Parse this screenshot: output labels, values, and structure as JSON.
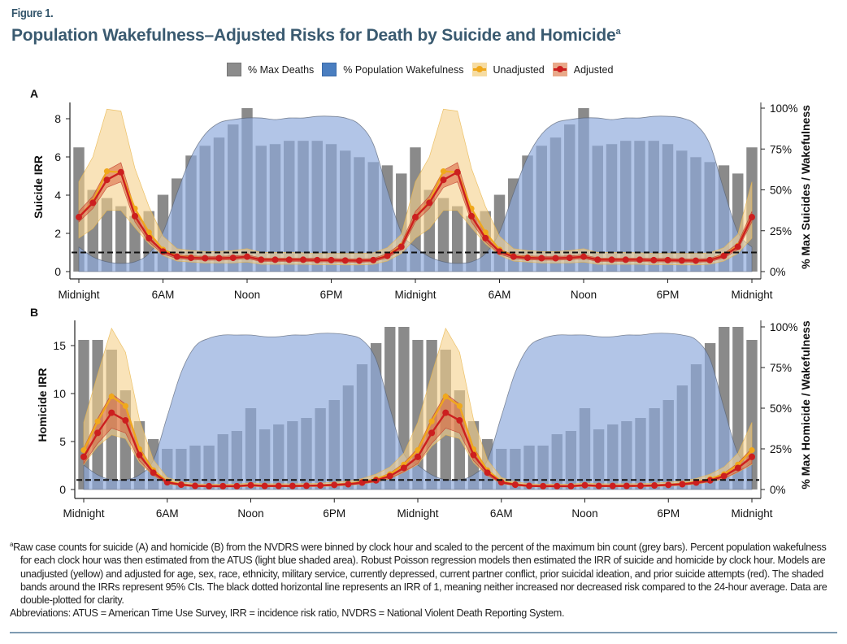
{
  "figure": {
    "label": "Figure 1.",
    "title": "Population Wakefulness–Adjusted Risks for Death by Suicide and Homicide",
    "title_sup": "a"
  },
  "legend": [
    {
      "label": "% Max Deaths",
      "color": "#8c8c8c"
    },
    {
      "label": "% Population Wakefulness",
      "color": "#4a7ec0"
    },
    {
      "label": "Unadjusted",
      "color": "#f0a81c"
    },
    {
      "label": "Adjusted",
      "color": "#cc1f1f"
    }
  ],
  "colors": {
    "bars": "#808080",
    "wake": "#8ea9db",
    "unadjusted_line": "#f0a81c",
    "unadjusted_band": "#f5d08a",
    "adjusted_line": "#cc1f1f",
    "adjusted_band": "#d9603a"
  },
  "chart_data": [
    {
      "panel": "A",
      "type": "bar+area+line",
      "ylabel": "Suicide IRR",
      "y2label": "% Max Suicides / Wakefulness",
      "ylim": [
        0,
        8.8
      ],
      "yticks": [
        "0",
        "2",
        "4",
        "6",
        "8"
      ],
      "ytick_values": [
        0,
        2,
        4,
        6,
        8
      ],
      "y2lim": [
        0,
        100
      ],
      "y2ticks": [
        "0%",
        "25%",
        "50%",
        "75%",
        "100%"
      ],
      "y2tick_values": [
        0,
        25,
        50,
        75,
        100
      ],
      "xticks": [
        "Midnight",
        "6AM",
        "Noon",
        "6PM",
        "Midnight",
        "6AM",
        "Noon",
        "6PM",
        "Midnight"
      ],
      "xtick_hours": [
        0,
        6,
        12,
        18,
        24,
        30,
        36,
        42,
        48
      ],
      "reference_line": 1,
      "hours": [
        0,
        1,
        2,
        3,
        4,
        5,
        6,
        7,
        8,
        9,
        10,
        11,
        12,
        13,
        14,
        15,
        16,
        17,
        18,
        19,
        20,
        21,
        22,
        23
      ],
      "pct_max_deaths": [
        76,
        50,
        45,
        40,
        34,
        37,
        47,
        57,
        71,
        77,
        82,
        90,
        100,
        77,
        78,
        80,
        80,
        80,
        78,
        74,
        70,
        67,
        65,
        60
      ],
      "pct_wakefulness": [
        15,
        9,
        6,
        5,
        6,
        11,
        24,
        48,
        70,
        84,
        91,
        93,
        94,
        94,
        93,
        94,
        94,
        95,
        95,
        94,
        90,
        78,
        50,
        24
      ],
      "unadjusted": {
        "irr": [
          2.85,
          3.65,
          5.25,
          5.2,
          3.3,
          2.05,
          1.15,
          0.8,
          0.75,
          0.7,
          0.7,
          0.72,
          0.78,
          0.63,
          0.63,
          0.63,
          0.62,
          0.6,
          0.6,
          0.58,
          0.58,
          0.6,
          0.85,
          1.35
        ],
        "lower": [
          1.75,
          2.25,
          3.2,
          3.2,
          2.3,
          1.45,
          0.85,
          0.55,
          0.5,
          0.45,
          0.45,
          0.45,
          0.5,
          0.38,
          0.38,
          0.38,
          0.38,
          0.36,
          0.36,
          0.35,
          0.35,
          0.38,
          0.55,
          0.95
        ],
        "upper": [
          4.7,
          6.0,
          8.5,
          8.4,
          5.4,
          3.4,
          1.85,
          1.2,
          1.1,
          1.05,
          1.05,
          1.1,
          1.2,
          1.0,
          1.0,
          1.0,
          0.98,
          0.96,
          0.96,
          0.95,
          0.95,
          0.98,
          1.25,
          1.95
        ]
      },
      "adjusted": {
        "irr": [
          2.85,
          3.6,
          4.8,
          5.2,
          2.9,
          1.75,
          1.05,
          0.78,
          0.72,
          0.7,
          0.7,
          0.72,
          0.78,
          0.62,
          0.62,
          0.62,
          0.62,
          0.6,
          0.6,
          0.58,
          0.57,
          0.6,
          0.82,
          1.3
        ],
        "lower": [
          2.6,
          3.3,
          4.4,
          4.7,
          2.6,
          1.55,
          0.92,
          0.68,
          0.62,
          0.6,
          0.6,
          0.62,
          0.68,
          0.53,
          0.53,
          0.53,
          0.53,
          0.51,
          0.51,
          0.5,
          0.49,
          0.52,
          0.71,
          1.15
        ],
        "upper": [
          3.15,
          3.95,
          5.3,
          5.7,
          3.25,
          1.98,
          1.18,
          0.88,
          0.82,
          0.8,
          0.8,
          0.82,
          0.88,
          0.71,
          0.71,
          0.71,
          0.71,
          0.69,
          0.69,
          0.67,
          0.66,
          0.69,
          0.94,
          1.48
        ]
      }
    },
    {
      "panel": "B",
      "type": "bar+area+line",
      "ylabel": "Homicide IRR",
      "y2label": "% Max Homicide / Wakefulness",
      "ylim": [
        0,
        17.5
      ],
      "yticks": [
        "0",
        "5",
        "10",
        "15"
      ],
      "ytick_values": [
        0,
        5,
        10,
        15
      ],
      "y2lim": [
        0,
        100
      ],
      "y2ticks": [
        "0%",
        "25%",
        "50%",
        "75%",
        "100%"
      ],
      "y2tick_values": [
        0,
        25,
        50,
        75,
        100
      ],
      "xticks": [
        "Midnight",
        "6AM",
        "Noon",
        "6PM",
        "Midnight",
        "6AM",
        "Noon",
        "6PM",
        "Midnight"
      ],
      "xtick_hours": [
        0,
        6,
        12,
        18,
        24,
        30,
        36,
        42,
        48
      ],
      "reference_line": 1,
      "hours": [
        0,
        1,
        2,
        3,
        4,
        5,
        6,
        7,
        8,
        9,
        10,
        11,
        12,
        13,
        14,
        15,
        16,
        17,
        18,
        19,
        20,
        21,
        22,
        23
      ],
      "pct_max_deaths": [
        92,
        92,
        86,
        61,
        42,
        31,
        25,
        25,
        27,
        27,
        34,
        36,
        50,
        37,
        40,
        42,
        44,
        50,
        55,
        64,
        77,
        90,
        100,
        100
      ],
      "pct_wakefulness": [
        15,
        9,
        6,
        6,
        9,
        18,
        45,
        72,
        88,
        93,
        95,
        95,
        95,
        94,
        94,
        95,
        95,
        96,
        96,
        95,
        92,
        80,
        50,
        22
      ],
      "unadjusted": {
        "irr": [
          4.1,
          7.1,
          9.7,
          8.7,
          4.2,
          2.0,
          0.85,
          0.55,
          0.4,
          0.38,
          0.38,
          0.38,
          0.48,
          0.4,
          0.4,
          0.4,
          0.42,
          0.45,
          0.52,
          0.6,
          0.8,
          1.1,
          1.6,
          2.6
        ],
        "lower": [
          2.6,
          4.5,
          5.7,
          5.3,
          2.8,
          1.45,
          0.6,
          0.38,
          0.28,
          0.26,
          0.26,
          0.26,
          0.33,
          0.27,
          0.27,
          0.27,
          0.29,
          0.31,
          0.36,
          0.42,
          0.56,
          0.78,
          1.12,
          1.8
        ],
        "upper": [
          7.0,
          12.0,
          16.8,
          14.3,
          7.3,
          3.1,
          1.25,
          0.8,
          0.6,
          0.55,
          0.55,
          0.55,
          0.7,
          0.6,
          0.6,
          0.6,
          0.62,
          0.66,
          0.76,
          0.88,
          1.15,
          1.6,
          2.35,
          3.8
        ]
      },
      "adjusted": {
        "irr": [
          3.4,
          5.9,
          8.0,
          7.2,
          3.6,
          1.75,
          0.75,
          0.5,
          0.38,
          0.35,
          0.35,
          0.35,
          0.45,
          0.37,
          0.37,
          0.37,
          0.39,
          0.42,
          0.48,
          0.55,
          0.72,
          0.95,
          1.4,
          2.25
        ],
        "lower": [
          2.7,
          4.8,
          6.4,
          5.9,
          3.0,
          1.5,
          0.63,
          0.42,
          0.32,
          0.29,
          0.29,
          0.29,
          0.38,
          0.31,
          0.31,
          0.31,
          0.33,
          0.35,
          0.4,
          0.46,
          0.6,
          0.8,
          1.17,
          1.85
        ],
        "upper": [
          4.3,
          7.4,
          10.0,
          8.9,
          4.4,
          2.08,
          0.9,
          0.6,
          0.46,
          0.42,
          0.42,
          0.42,
          0.54,
          0.44,
          0.44,
          0.44,
          0.47,
          0.5,
          0.58,
          0.66,
          0.87,
          1.14,
          1.7,
          2.75
        ]
      }
    }
  ],
  "footnote": {
    "sup": "a",
    "text": "Raw case counts for suicide (A) and homicide (B) from the NVDRS were binned by clock hour and scaled to the percent of the maximum bin count (grey bars). Percent population wakefulness for each clock hour was then estimated from the ATUS (light blue shaded area). Robust Poisson regression models then estimated the IRR of suicide and homicide by clock hour. Models are unadjusted (yellow) and adjusted for age, sex, race, ethnicity, military service, currently depressed, current partner conflict, prior suicidal ideation, and prior suicide attempts (red). The shaded bands around the IRRs represent 95% CIs. The black dotted horizontal line represents an IRR of 1, meaning neither increased nor decreased risk compared to the 24-hour average. Data are double-plotted for clarity.",
    "abbreviations": "Abbreviations: ATUS = American Time Use Survey, IRR = incidence risk ratio, NVDRS = National Violent Death Reporting System."
  }
}
